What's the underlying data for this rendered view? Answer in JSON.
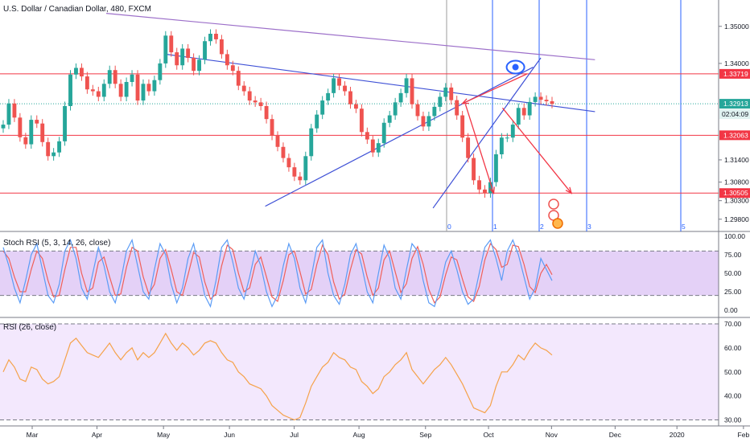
{
  "chart_data": {
    "type": "line",
    "main": {
      "title": "U.S. Dollar / Canadian Dollar, 480, FXCM",
      "price_ticks": [
        "1.35000",
        "1.34000",
        "1.31400",
        "1.30800",
        "1.30300",
        "1.29800"
      ],
      "ylim": [
        1.296,
        1.3545
      ],
      "current_price": {
        "value": "1.32913",
        "countdown": "02:04:09"
      },
      "horizontal_levels": [
        {
          "value": "1.33719",
          "price": 1.33719
        },
        {
          "value": "1.32063",
          "price": 1.32063
        },
        {
          "value": "1.30505",
          "price": 1.30505
        }
      ],
      "cycle_labels": [
        "0",
        "1",
        "2",
        "3",
        "5"
      ],
      "price_series": [
        1.3235,
        1.3292,
        1.3254,
        1.3201,
        1.3182,
        1.3248,
        1.3238,
        1.3188,
        1.315,
        1.316,
        1.319,
        1.3285,
        1.337,
        1.3388,
        1.3365,
        1.333,
        1.3325,
        1.331,
        1.3345,
        1.3382,
        1.3345,
        1.331,
        1.335,
        1.337,
        1.33,
        1.3345,
        1.3325,
        1.3355,
        1.34,
        1.3475,
        1.343,
        1.3395,
        1.344,
        1.3415,
        1.338,
        1.341,
        1.346,
        1.348,
        1.3465,
        1.3425,
        1.3395,
        1.338,
        1.334,
        1.3325,
        1.33,
        1.3295,
        1.3285,
        1.325,
        1.3205,
        1.3175,
        1.3145,
        1.312,
        1.3095,
        1.3085,
        1.315,
        1.3225,
        1.3262,
        1.33,
        1.332,
        1.336,
        1.334,
        1.3325,
        1.329,
        1.3278,
        1.3215,
        1.3195,
        1.316,
        1.3185,
        1.324,
        1.326,
        1.3295,
        1.332,
        1.336,
        1.329,
        1.3258,
        1.323,
        1.3258,
        1.3283,
        1.331,
        1.3335,
        1.3301,
        1.326,
        1.32,
        1.3145,
        1.3085,
        1.306,
        1.305,
        1.308,
        1.3155,
        1.32,
        1.32,
        1.3235,
        1.328,
        1.326,
        1.3296,
        1.331,
        1.3302,
        1.3298,
        1.3291
      ],
      "trendlines": [
        {
          "points": [
            [
              17.5,
              1.3535
            ],
            [
              100.5,
              1.341
            ]
          ]
        },
        {
          "points": [
            [
              27.5,
              1.3425
            ],
            [
              100.5,
              1.327
            ]
          ]
        },
        {
          "points": [
            [
              44.5,
              1.3015
            ],
            [
              90,
              1.339
            ]
          ]
        },
        {
          "points": [
            [
              73,
              1.301
            ],
            [
              91.3,
              1.3415
            ]
          ]
        }
      ],
      "forecast_arrows": [
        {
          "from": [
            89,
            1.3372
          ],
          "to": [
            78,
            1.3292
          ]
        },
        {
          "from": [
            78.5,
            1.329
          ],
          "to": [
            83.3,
            1.305
          ]
        },
        {
          "from": [
            84.8,
            1.328
          ],
          "to": [
            96.5,
            1.305
          ]
        }
      ],
      "eye_marker": [
        87,
        1.339
      ]
    },
    "stoch_rsi": {
      "title": "Stoch RSI (5, 3, 14, 26, close)",
      "ticks": [
        "100.00",
        "75.00",
        "50.00",
        "25.00",
        "0.00"
      ],
      "ylim": [
        0,
        100
      ],
      "band": [
        20,
        80
      ],
      "k": [
        85,
        60,
        30,
        10,
        40,
        75,
        90,
        55,
        20,
        10,
        35,
        80,
        95,
        70,
        30,
        15,
        50,
        85,
        60,
        25,
        10,
        40,
        80,
        95,
        60,
        25,
        15,
        55,
        90,
        75,
        35,
        10,
        30,
        70,
        90,
        55,
        20,
        5,
        40,
        85,
        95,
        65,
        30,
        15,
        45,
        80,
        60,
        25,
        5,
        20,
        60,
        90,
        70,
        30,
        10,
        45,
        85,
        95,
        50,
        20,
        8,
        35,
        75,
        90,
        60,
        25,
        10,
        50,
        88,
        70,
        30,
        15,
        55,
        90,
        80,
        40,
        10,
        5,
        30,
        65,
        80,
        55,
        25,
        8,
        15,
        50,
        85,
        95,
        70,
        40,
        80,
        95,
        75,
        45,
        15,
        30,
        70,
        55,
        40
      ],
      "d": [
        80,
        70,
        45,
        25,
        25,
        55,
        80,
        70,
        40,
        18,
        20,
        55,
        85,
        85,
        50,
        25,
        30,
        65,
        72,
        45,
        20,
        22,
        58,
        85,
        80,
        45,
        22,
        35,
        70,
        82,
        55,
        25,
        20,
        48,
        78,
        72,
        38,
        15,
        22,
        60,
        88,
        82,
        50,
        25,
        30,
        62,
        72,
        45,
        18,
        12,
        40,
        75,
        80,
        52,
        22,
        28,
        62,
        88,
        75,
        38,
        15,
        22,
        55,
        82,
        76,
        45,
        20,
        30,
        68,
        80,
        52,
        24,
        36,
        70,
        86,
        62,
        28,
        10,
        18,
        48,
        72,
        68,
        42,
        18,
        12,
        32,
        68,
        90,
        82,
        58,
        62,
        88,
        86,
        62,
        32,
        24,
        50,
        62,
        48
      ]
    },
    "rsi": {
      "title": "RSI (26, close)",
      "ticks": [
        "70.00",
        "60.00",
        "50.00",
        "40.00",
        "30.00"
      ],
      "ylim": [
        27.5,
        72
      ],
      "band": [
        30,
        70
      ],
      "values": [
        50,
        55,
        52,
        47,
        46,
        52,
        51,
        47,
        45,
        46,
        48,
        55,
        62,
        64,
        61,
        58,
        57,
        56,
        59,
        62,
        58,
        55,
        58,
        60,
        55,
        58,
        56,
        58,
        62,
        66,
        62,
        59,
        62,
        60,
        57,
        59,
        62,
        63,
        62,
        58,
        55,
        54,
        50,
        48,
        45,
        44,
        43,
        40,
        36,
        34,
        32,
        31,
        30,
        31,
        37,
        44,
        48,
        52,
        54,
        58,
        56,
        55,
        52,
        51,
        46,
        44,
        41,
        43,
        48,
        50,
        53,
        55,
        58,
        51,
        48,
        45,
        48,
        51,
        53,
        56,
        53,
        49,
        45,
        40,
        35,
        34,
        33,
        36,
        44,
        50,
        50,
        53,
        57,
        55,
        59,
        62,
        60,
        59,
        57
      ]
    },
    "x_axis": {
      "labels": [
        "Mar",
        "Apr",
        "May",
        "Jun",
        "Jul",
        "Aug",
        "Sep",
        "Oct",
        "Nov",
        "Dec",
        "2020",
        "Feb"
      ],
      "label_positions": [
        0,
        11,
        22.3,
        33.5,
        44.5,
        55.5,
        66.8,
        77.5,
        88.2,
        99,
        109.5,
        120.8
      ]
    },
    "colors": {
      "up": "#26a69a",
      "down": "#ef5350",
      "level": "#f23645",
      "trend": "#3f51d6",
      "resistance": "#9c6fc9",
      "cycle": "#2962ff",
      "stoch_k": "#5b9cf6",
      "stoch_d": "#f0605a",
      "stoch_band": "#e4d1f7",
      "rsi": "#f5a24a",
      "rsi_band": "#f3e8fd"
    }
  }
}
